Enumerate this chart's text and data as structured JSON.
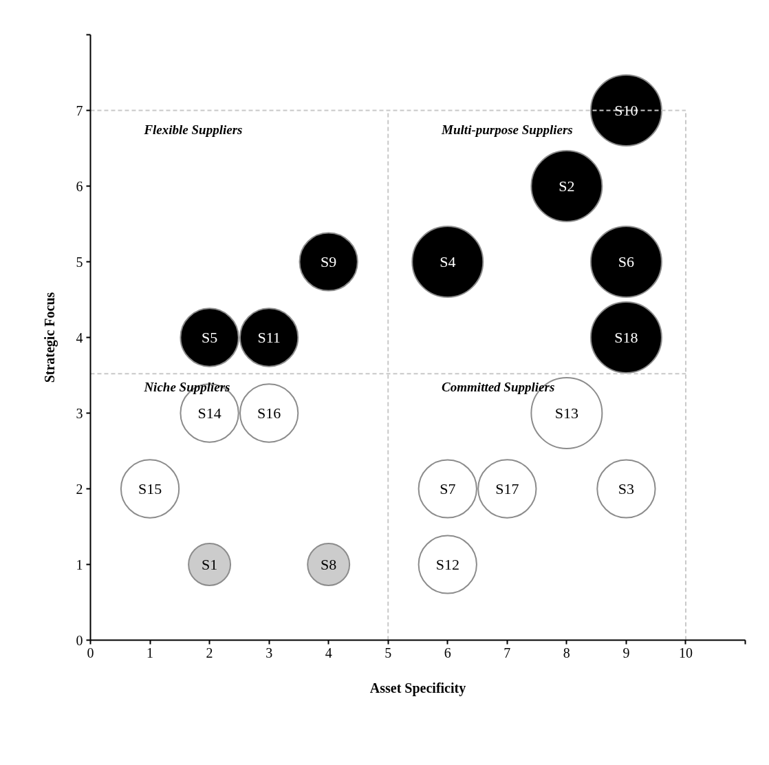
{
  "chart_data": {
    "type": "bubble",
    "xlabel": "Asset Specificity",
    "ylabel": "Strategic Focus",
    "x": [
      2,
      8,
      9,
      6,
      2,
      9,
      6,
      4,
      4,
      9,
      3,
      6,
      8,
      2,
      1,
      3,
      7,
      9
    ],
    "values": [
      1,
      6,
      2,
      5,
      4,
      5,
      2,
      1,
      5,
      7,
      4,
      1,
      3,
      3,
      2,
      3,
      2,
      4
    ],
    "sizes": [
      0.35,
      1,
      0.67,
      1,
      0.67,
      1,
      0.67,
      0.35,
      0.67,
      1,
      0.67,
      0.67,
      1,
      0.67,
      0.67,
      0.67,
      0.67,
      1
    ],
    "colors": [
      "#cccccc",
      "#000000",
      "#ffffff",
      "#000000",
      "#000000",
      "#000000",
      "#ffffff",
      "#cccccc",
      "#000000",
      "#000000",
      "#000000",
      "#ffffff",
      "#ffffff",
      "#ffffff",
      "#ffffff",
      "#ffffff",
      "#ffffff",
      "#000000"
    ],
    "xlim": [
      0,
      11
    ],
    "ylim": [
      0,
      8
    ],
    "xticks": [
      0,
      1,
      2,
      3,
      4,
      5,
      6,
      7,
      8,
      9,
      10,
      {
        "value": 11,
        "label": null
      }
    ],
    "yticks": [
      0,
      1,
      2,
      3,
      4,
      5,
      6,
      7,
      {
        "value": 8,
        "label": null
      }
    ],
    "grid": false,
    "ref_lines": [
      {
        "axis": "x",
        "value": 5,
        "color": "#c8c8c8",
        "line_style": "dashed"
      },
      {
        "axis": "x",
        "value": 10,
        "color": "#c8c8c8",
        "line_style": "dashed"
      },
      {
        "axis": "y",
        "value": 7,
        "color": "#c8c8c8",
        "line_style": "dashed"
      },
      {
        "axis": "y",
        "value": 3.52,
        "color": "#c8c8c8",
        "line_style": "dashed"
      }
    ],
    "annotations": [
      "Flexible Suppliers",
      "Multi-purpose Suppliers",
      "Niche Suppliers",
      "Committed Suppliers",
      {
        "text": "S1",
        "x": 2,
        "y": 1
      },
      {
        "text": "S2",
        "x": 8,
        "y": 6
      },
      {
        "text": "S3",
        "x": 9,
        "y": 2
      },
      {
        "text": "S4",
        "x": 6,
        "y": 5
      },
      {
        "text": "S5",
        "x": 2,
        "y": 4
      },
      {
        "text": "S6",
        "x": 9,
        "y": 5
      },
      {
        "text": "S7",
        "x": 6,
        "y": 2
      },
      {
        "text": "S8",
        "x": 4,
        "y": 1
      },
      {
        "text": "S9",
        "x": 4,
        "y": 5
      },
      {
        "text": "S10",
        "x": 9,
        "y": 7
      },
      {
        "text": "S11",
        "x": 3,
        "y": 4
      },
      {
        "text": "S12",
        "x": 6,
        "y": 1
      },
      {
        "text": "S13",
        "x": 8,
        "y": 3
      },
      {
        "text": "S14",
        "x": 2,
        "y": 3
      },
      {
        "text": "S15",
        "x": 1,
        "y": 2
      },
      {
        "text": "S16",
        "x": 3,
        "y": 3
      },
      {
        "text": "S17",
        "x": 7,
        "y": 2
      },
      {
        "text": "S18",
        "x": 9,
        "y": 4
      }
    ]
  }
}
